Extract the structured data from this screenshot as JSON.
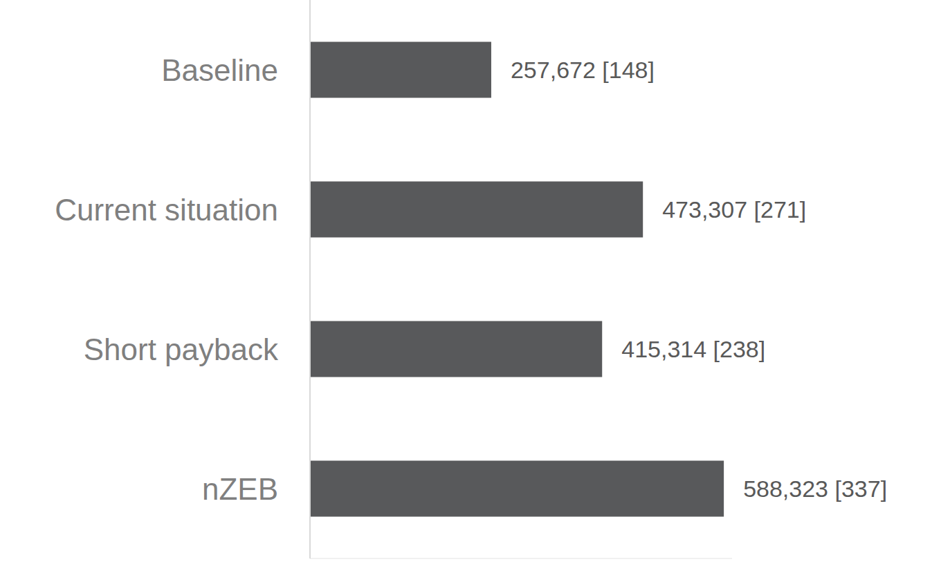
{
  "chart_data": {
    "type": "bar",
    "orientation": "horizontal",
    "categories": [
      "Baseline",
      "Current situation",
      "Short payback",
      "nZEB"
    ],
    "values": [
      257672,
      473307,
      415314,
      588323
    ],
    "value_labels": [
      "257,672 [148]",
      "473,307 [271]",
      "415,314 [238]",
      "588,323 [337]"
    ],
    "color": "#58595b",
    "xlim": [
      0,
      600000
    ],
    "data_labels": true,
    "tick_labels": "y",
    "grid": false
  }
}
